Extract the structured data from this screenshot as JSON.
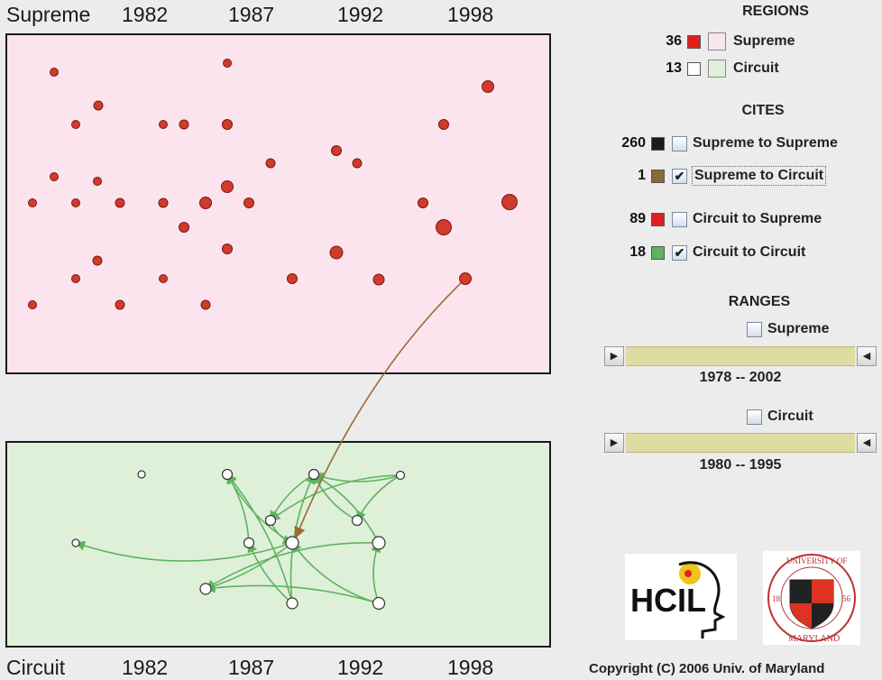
{
  "header": {
    "supreme_title": "Supreme",
    "years": [
      "1982",
      "1987",
      "1992",
      "1998"
    ]
  },
  "footer": {
    "circuit_title": "Circuit",
    "years": [
      "1982",
      "1987",
      "1992",
      "1998"
    ],
    "copyright": "Copyright (C) 2006  Univ. of Maryland"
  },
  "regions": {
    "heading": "REGIONS",
    "items": [
      {
        "count": "36",
        "label": "Supreme",
        "swatch_color": "#e02020",
        "region_color": "#fbe4ee"
      },
      {
        "count": "13",
        "label": "Circuit",
        "swatch_color": "#ffffff",
        "region_color": "#dff0d9"
      }
    ]
  },
  "cites": {
    "heading": "CITES",
    "items": [
      {
        "count": "260",
        "label": "Supreme to Supreme",
        "color": "#1a1a1a",
        "checked": false
      },
      {
        "count": "1",
        "label": "Supreme to Circuit",
        "color": "#8b6a3a",
        "checked": true
      },
      {
        "count": "89",
        "label": "Circuit to Supreme",
        "color": "#e02020",
        "checked": false
      },
      {
        "count": "18",
        "label": "Circuit to Circuit",
        "color": "#5fb35f",
        "checked": true
      }
    ]
  },
  "ranges": {
    "heading": "RANGES",
    "supreme": {
      "label": "Supreme",
      "checked": false,
      "start": "1978",
      "end": "2002",
      "text": "1978  --  2002"
    },
    "circuit": {
      "label": "Circuit",
      "checked": false,
      "start": "1980",
      "end": "1995",
      "text": "1980  --  1995"
    }
  },
  "logos": {
    "hcil_text": "HCIL",
    "umd_top": "UNIVERSITY OF",
    "umd_bottom": "MARYLAND",
    "umd_left": "18",
    "umd_right": "56"
  },
  "colors": {
    "supreme_node": "#d23a2a",
    "circuit_node": "#ffffff",
    "circuit_edge": "#5fb35f",
    "cross_edge": "#9a6a3a"
  }
}
